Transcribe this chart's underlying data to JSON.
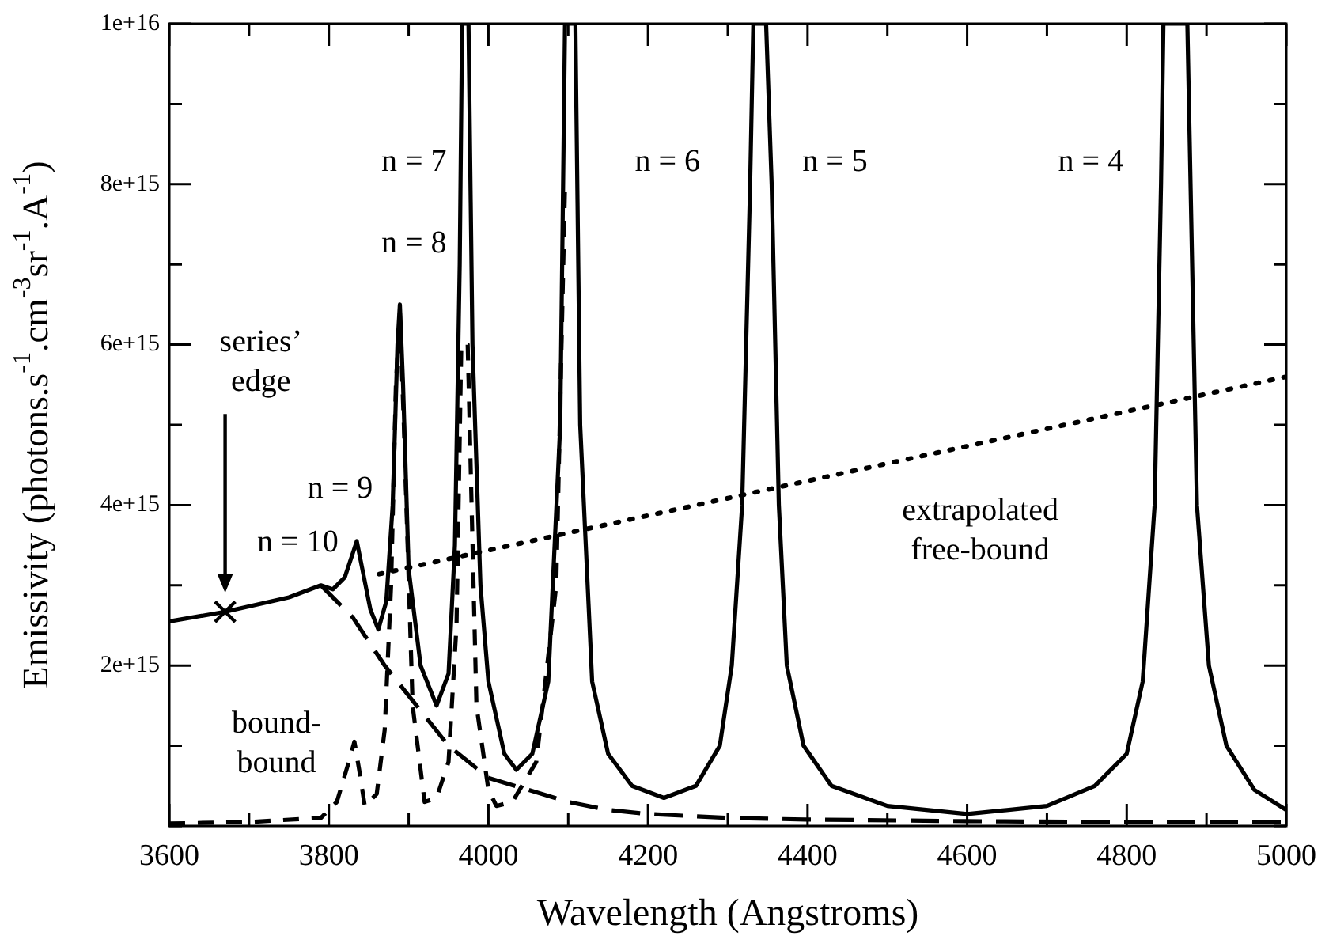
{
  "chart_data": {
    "type": "line",
    "xlabel": "Wavelength (Angstroms)",
    "ylabel": "Emissivity (photons.s$^{-1}$.cm$^{-3}$sr$^{-1}$.A$^{-1}$)",
    "xlim": [
      3600,
      5000
    ],
    "xticks": [
      3600,
      {
        "value": 3700,
        "label": null
      },
      3800,
      {
        "value": 3900,
        "label": null
      },
      4000,
      {
        "value": 4100,
        "label": null
      },
      4200,
      {
        "value": 4300,
        "label": null
      },
      4400,
      {
        "value": 4500,
        "label": null
      },
      4600,
      {
        "value": 4700,
        "label": null
      },
      4800,
      {
        "value": 4900,
        "label": null
      },
      5000
    ],
    "ylim": [
      0,
      1e+16
    ],
    "yticks": [
      {
        "value": 0,
        "label": null
      },
      {
        "value": 1000000000000000.0,
        "label": null
      },
      {
        "value": 2000000000000000.0,
        "label": "2e+15"
      },
      {
        "value": 3000000000000000.0,
        "label": null
      },
      {
        "value": 4000000000000000.0,
        "label": "4e+15"
      },
      {
        "value": 5000000000000000.0,
        "label": null
      },
      {
        "value": 6000000000000000.0,
        "label": "6e+15"
      },
      {
        "value": 7000000000000000.0,
        "label": null
      },
      {
        "value": 8000000000000000.0,
        "label": "8e+15"
      },
      {
        "value": 9000000000000000.0,
        "label": null
      },
      {
        "value": 1e+16,
        "label": "1e+16"
      }
    ],
    "grid": false,
    "legend": false,
    "series": [
      {
        "type": "line",
        "color": "#000000",
        "line_style": "solid",
        "marker": "none",
        "x": [
          3600,
          3670,
          3750,
          3790,
          3805,
          3820,
          3830,
          3835,
          3842,
          3852,
          3862,
          3872,
          3880,
          3886,
          3889,
          3893,
          3900,
          3915,
          3935,
          3950,
          3958,
          3964,
          3967,
          3975,
          3980,
          3990,
          4000,
          4020,
          4035,
          4055,
          4075,
          4090,
          4096,
          4109,
          4115,
          4130,
          4150,
          4180,
          4220,
          4260,
          4290,
          4305,
          4318,
          4328,
          4332,
          4348,
          4355,
          4364,
          4374,
          4395,
          4430,
          4500,
          4600,
          4700,
          4760,
          4800,
          4820,
          4835,
          4843,
          4846,
          4876,
          4880,
          4888,
          4903,
          4925,
          4960,
          5000
        ],
        "values": [
          2550000000000000.0,
          2670000000000000.0,
          2850000000000000.0,
          3000000000000000.0,
          2950000000000000.0,
          3100000000000000.0,
          3400000000000000.0,
          3550000000000000.0,
          3200000000000000.0,
          2700000000000000.0,
          2450000000000000.0,
          2800000000000000.0,
          4000000000000000.0,
          6000000000000000.0,
          6500000000000000.0,
          5500000000000000.0,
          3200000000000000.0,
          2000000000000000.0,
          1500000000000000.0,
          1900000000000000.0,
          3500000000000000.0,
          7000000000000000.0,
          1e+16,
          1e+16,
          6000000000000000.0,
          3000000000000000.0,
          1800000000000000.0,
          900000000000000.0,
          700000000000000.0,
          900000000000000.0,
          1800000000000000.0,
          5000000000000000.0,
          1e+16,
          1e+16,
          5000000000000000.0,
          1800000000000000.0,
          900000000000000.0,
          500000000000000.0,
          350000000000000.0,
          500000000000000.0,
          1000000000000000.0,
          2000000000000000.0,
          4000000000000000.0,
          8000000000000000.0,
          1e+16,
          1e+16,
          8000000000000000.0,
          4000000000000000.0,
          2000000000000000.0,
          1000000000000000.0,
          500000000000000.0,
          250000000000000.0,
          150000000000000.0,
          250000000000000.0,
          500000000000000.0,
          900000000000000.0,
          1800000000000000.0,
          4000000000000000.0,
          8000000000000000.0,
          1e+16,
          1e+16,
          8000000000000000.0,
          4000000000000000.0,
          2000000000000000.0,
          1000000000000000.0,
          450000000000000.0,
          200000000000000.0
        ]
      },
      {
        "type": "line",
        "color": "#000000",
        "line_style": "dashed",
        "marker": "none",
        "x": [
          3790,
          3830,
          3870,
          3910,
          3950,
          4000,
          4050,
          4100,
          4150,
          4200,
          4300,
          4400,
          4600,
          4800,
          5000
        ],
        "values": [
          3000000000000000.0,
          2600000000000000.0,
          2000000000000000.0,
          1500000000000000.0,
          1000000000000000.0,
          600000000000000.0,
          450000000000000.0,
          300000000000000.0,
          200000000000000.0,
          150000000000000.0,
          100000000000000.0,
          80000000000000.0,
          60000000000000.0,
          50000000000000.0,
          50000000000000.0
        ]
      },
      {
        "type": "line",
        "color": "#000000",
        "line_style": "dashed",
        "marker": "none",
        "x": [
          3600,
          3700,
          3790,
          3810,
          3825,
          3832,
          3838,
          3845,
          3860,
          3870,
          3878,
          3884,
          3889,
          3894,
          3905,
          3920,
          3935,
          3950,
          3960,
          3966,
          3974,
          3985,
          4000,
          4010,
          4030,
          4060,
          4085,
          4096
        ],
        "values": [
          30000000000000.0,
          50000000000000.0,
          100000000000000.0,
          300000000000000.0,
          800000000000000.0,
          1050000000000000.0,
          700000000000000.0,
          250000000000000.0,
          400000000000000.0,
          1200000000000000.0,
          3000000000000000.0,
          5500000000000000.0,
          6400000000000000.0,
          5000000000000000.0,
          1500000000000000.0,
          300000000000000.0,
          350000000000000.0,
          800000000000000.0,
          2500000000000000.0,
          6000000000000000.0,
          6000000000000000.0,
          1500000000000000.0,
          450000000000000.0,
          250000000000000.0,
          300000000000000.0,
          800000000000000.0,
          3000000000000000.0,
          8000000000000000.0
        ]
      },
      {
        "type": "line",
        "color": "#000000",
        "line_style": "dotted",
        "marker": "none",
        "x": [
          3863,
          5000
        ],
        "values": [
          3140000000000000.0,
          5600000000000000.0
        ]
      },
      {
        "type": "scatter",
        "color": "#000000",
        "marker": "cross",
        "x": [
          3670
        ],
        "values": [
          2670000000000000.0
        ]
      }
    ],
    "annotations": [
      "n = 7",
      "n = 8",
      "n = 6",
      "n = 5",
      "n = 4",
      "n = 9",
      "n = 10",
      "series’\nedge",
      "bound-\nbound",
      "extrapolated\nfree-bound"
    ]
  }
}
